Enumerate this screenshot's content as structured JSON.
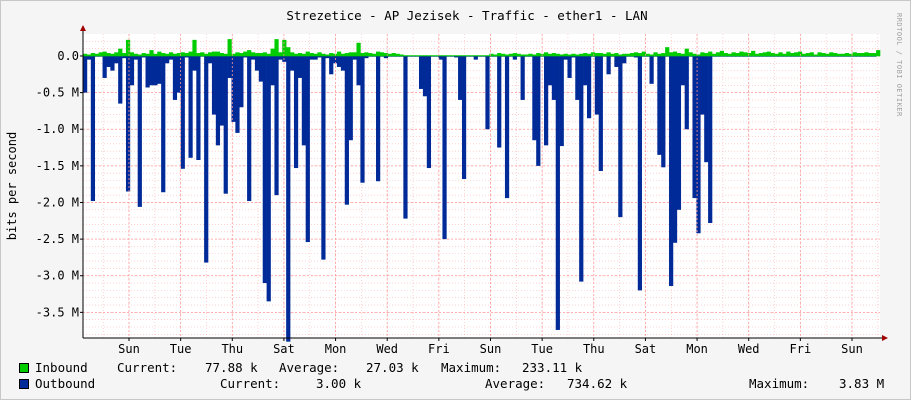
{
  "chart_data": {
    "type": "area",
    "title": "Strezetice - AP Jezisek - Traffic - ether1 - LAN",
    "ylabel": "bits per second",
    "ylim": [
      -3.85,
      0.3
    ],
    "yticks": [
      {
        "value": 0.0,
        "label": "0.0"
      },
      {
        "value": -0.5,
        "label": "-0.5 M"
      },
      {
        "value": -1.0,
        "label": "-1.0 M"
      },
      {
        "value": -1.5,
        "label": "-1.5 M"
      },
      {
        "value": -2.0,
        "label": "-2.0 M"
      },
      {
        "value": -2.5,
        "label": "-2.5 M"
      },
      {
        "value": -3.0,
        "label": "-3.0 M"
      },
      {
        "value": -3.5,
        "label": "-3.5 M"
      }
    ],
    "xlabels": [
      "Sun",
      "Tue",
      "Thu",
      "Sat",
      "Mon",
      "Wed",
      "Fri",
      "Sun",
      "Tue",
      "Thu",
      "Sat",
      "Mon",
      "Wed",
      "Fri",
      "Sun"
    ],
    "colors": {
      "inbound": "#00cc00",
      "outbound": "#002a97",
      "grid": "#ff9999",
      "axis": "#000000"
    },
    "series": [
      {
        "name": "Inbound",
        "unit": "Mbps",
        "values": [
          0.03,
          0.02,
          0.04,
          0.03,
          0.05,
          0.06,
          0.04,
          0.03,
          0.05,
          0.1,
          0.04,
          0.22,
          0.05,
          0.03,
          0.02,
          0.04,
          0.03,
          0.08,
          0.03,
          0.06,
          0.04,
          0.03,
          0.05,
          0.03,
          0.04,
          0.05,
          0.04,
          0.06,
          0.22,
          0.04,
          0.05,
          0.03,
          0.05,
          0.06,
          0.06,
          0.04,
          0.03,
          0.23,
          0.03,
          0.05,
          0.04,
          0.06,
          0.08,
          0.05,
          0.04,
          0.04,
          0.05,
          0.03,
          0.1,
          0.23,
          0.05,
          0.22,
          0.12,
          0.05,
          0.03,
          0.04,
          0.03,
          0.06,
          0.04,
          0.03,
          0.05,
          0.03,
          0.02,
          0.04,
          0.03,
          0.06,
          0.03,
          0.04,
          0.05,
          0.05,
          0.18,
          0.04,
          0.05,
          0.04,
          0.03,
          0.06,
          0.05,
          0.04,
          0.03,
          0.04,
          0.03,
          0.02,
          0.01,
          0.01,
          0.01,
          0.01,
          0.01,
          0.01,
          0.01,
          0.01,
          0.01,
          0.01,
          0.01,
          0.01,
          0.01,
          0.01,
          0.01,
          0.01,
          0.01,
          0.01,
          0.01,
          0.01,
          0.01,
          0.01,
          0.03,
          0.02,
          0.04,
          0.03,
          0.02,
          0.03,
          0.04,
          0.03,
          0.02,
          0.02,
          0.03,
          0.02,
          0.04,
          0.03,
          0.05,
          0.03,
          0.04,
          0.03,
          0.02,
          0.03,
          0.02,
          0.03,
          0.02,
          0.03,
          0.04,
          0.03,
          0.05,
          0.04,
          0.04,
          0.03,
          0.05,
          0.03,
          0.04,
          0.02,
          0.03,
          0.03,
          0.04,
          0.05,
          0.04,
          0.06,
          0.03,
          0.02,
          0.05,
          0.03,
          0.04,
          0.12,
          0.05,
          0.06,
          0.04,
          0.03,
          0.1,
          0.05,
          0.03,
          0.02,
          0.05,
          0.04,
          0.06,
          0.03,
          0.05,
          0.07,
          0.04,
          0.03,
          0.05,
          0.04,
          0.06,
          0.05,
          0.04,
          0.07,
          0.03,
          0.04,
          0.05,
          0.06,
          0.04,
          0.03,
          0.05,
          0.03,
          0.06,
          0.04,
          0.05,
          0.06,
          0.03,
          0.04,
          0.05,
          0.02,
          0.05,
          0.04,
          0.03,
          0.05,
          0.04,
          0.03,
          0.03,
          0.04,
          0.03,
          0.05,
          0.04,
          0.04,
          0.05,
          0.04,
          0.04,
          0.08
        ]
      },
      {
        "name": "Outbound",
        "unit": "Mbps",
        "values": [
          -0.5,
          -0.05,
          -1.98,
          -0.01,
          -0.01,
          -0.3,
          -0.15,
          -0.2,
          -0.1,
          -0.65,
          -0.03,
          -1.85,
          -0.4,
          -0.05,
          -2.06,
          -0.02,
          -0.43,
          -0.4,
          -0.4,
          -0.38,
          -1.86,
          -0.1,
          -0.05,
          -0.6,
          -0.5,
          -1.54,
          -0.02,
          -1.39,
          -0.2,
          -1.42,
          -0.01,
          -2.82,
          -0.1,
          -0.8,
          -1.22,
          -0.95,
          -1.88,
          -0.3,
          -0.9,
          -1.05,
          -0.7,
          -0.02,
          -1.98,
          -0.05,
          -0.2,
          -0.35,
          -3.1,
          -3.35,
          -0.4,
          -1.9,
          -0.05,
          -0.08,
          -3.9,
          -0.2,
          -1.53,
          -0.3,
          -1.22,
          -2.54,
          -0.05,
          -0.05,
          -0.02,
          -2.78,
          -0.03,
          -0.25,
          -0.1,
          -0.15,
          -0.2,
          -2.03,
          -1.15,
          -0.05,
          -0.4,
          -1.73,
          -0.03,
          -0.01,
          -0.01,
          -1.71,
          -0.01,
          -0.03,
          -0.01,
          -0.01,
          -0.01,
          -0.01,
          -2.22,
          -0.01,
          -0.01,
          -0.01,
          -0.45,
          -0.55,
          -1.53,
          -0.01,
          -0.01,
          -0.05,
          -2.5,
          -0.01,
          -0.01,
          -0.02,
          -0.6,
          -1.68,
          -0.01,
          -0.01,
          -0.05,
          -0.01,
          -0.01,
          -1.0,
          -0.01,
          -0.01,
          -1.25,
          -0.01,
          -1.94,
          -0.01,
          -0.05,
          -0.01,
          -0.6,
          -0.01,
          -0.01,
          -1.15,
          -1.5,
          -0.01,
          -1.22,
          -0.4,
          -0.6,
          -3.74,
          -1.23,
          -0.05,
          -0.3,
          -0.02,
          -0.6,
          -3.08,
          -0.4,
          -0.85,
          -0.01,
          -0.8,
          -1.57,
          -0.01,
          -0.25,
          -0.01,
          -0.15,
          -2.2,
          -0.1,
          -0.01,
          -0.01,
          -0.02,
          -3.2,
          -0.01,
          -0.01,
          -0.38,
          -0.01,
          -1.35,
          -1.52,
          -0.01,
          -3.14,
          -2.55,
          -2.1,
          -0.4,
          -1.0,
          -0.01,
          -1.94,
          -2.42,
          -0.8,
          -1.45,
          -2.28,
          -0.01,
          -0.01,
          -0.01,
          -0.01,
          -0.01,
          -0.01,
          -0.01,
          -0.01,
          -0.01,
          -0.01,
          -0.01,
          -0.01,
          -0.01,
          -0.01,
          -0.01,
          -0.01,
          -0.01,
          -0.01,
          -0.01,
          -0.01,
          -0.01,
          -0.01,
          -0.01,
          -0.01,
          -0.01,
          -0.01,
          -0.01,
          -0.01,
          -0.01,
          -0.01,
          -0.01,
          -0.01,
          -0.01,
          -0.01,
          -0.01,
          -0.01,
          -0.01,
          -0.01,
          -0.01,
          -0.01,
          -0.01,
          -0.01
        ]
      }
    ]
  },
  "legend": {
    "inbound": {
      "name": "Inbound",
      "current_label": "Current:",
      "current": "77.88 k",
      "average_label": "Average:",
      "average": "27.03 k",
      "maximum_label": "Maximum:",
      "maximum": "233.11 k"
    },
    "outbound": {
      "name": "Outbound",
      "current_label": "Current:",
      "current": "3.00 k",
      "average_label": "Average:",
      "average": "734.62 k",
      "maximum_label": "Maximum:",
      "maximum": "3.83 M"
    }
  },
  "watermark": "RRDTOOL / TOBI OETIKER"
}
